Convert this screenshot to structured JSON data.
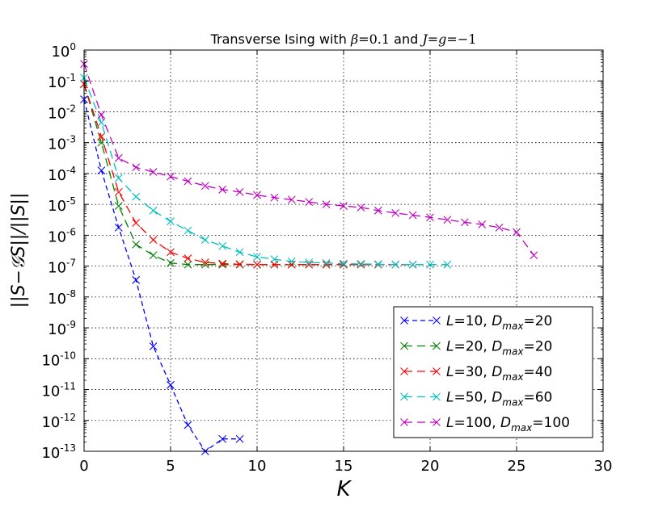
{
  "chart_data": {
    "type": "line",
    "title_parts": [
      "Transverse Ising with ",
      "β",
      "=0.1",
      " and ",
      "J",
      "=",
      "g",
      "=−1"
    ],
    "xlabel": "K",
    "ylabel": "||S−𝒢S||/||S||",
    "xlim": [
      0,
      30
    ],
    "ylim_log10": [
      -13,
      0
    ],
    "xticks": [
      0,
      5,
      10,
      15,
      20,
      25,
      30
    ],
    "yticks": [
      {
        "base": "10",
        "exp": "0"
      },
      {
        "base": "10",
        "exp": "-1"
      },
      {
        "base": "10",
        "exp": "-2"
      },
      {
        "base": "10",
        "exp": "-3"
      },
      {
        "base": "10",
        "exp": "-4"
      },
      {
        "base": "10",
        "exp": "-5"
      },
      {
        "base": "10",
        "exp": "-6"
      },
      {
        "base": "10",
        "exp": "-7"
      },
      {
        "base": "10",
        "exp": "-8"
      },
      {
        "base": "10",
        "exp": "-9"
      },
      {
        "base": "10",
        "exp": "-10"
      },
      {
        "base": "10",
        "exp": "-11"
      },
      {
        "base": "10",
        "exp": "-12"
      },
      {
        "base": "10",
        "exp": "-13"
      }
    ],
    "grid": true,
    "legend_position": "lower-right",
    "series": [
      {
        "L": "10",
        "Dmax": "20",
        "color": "#0000ff",
        "x": [
          0,
          1,
          2,
          3,
          4,
          5,
          6,
          7,
          8,
          9
        ],
        "y_log10": [
          -1.6,
          -3.9,
          -5.75,
          -7.45,
          -9.6,
          -10.85,
          -12.15,
          -13.0,
          -12.6,
          -12.6
        ]
      },
      {
        "L": "20",
        "Dmax": "20",
        "color": "#008000",
        "x": [
          0,
          1,
          2,
          3,
          4,
          5,
          6,
          7,
          8,
          9,
          10,
          11,
          12,
          13,
          14,
          15,
          16,
          17
        ],
        "y_log10": [
          -1.1,
          -3.0,
          -5.05,
          -6.3,
          -6.65,
          -6.9,
          -6.95,
          -6.95,
          -6.95,
          -6.95,
          -6.95,
          -6.95,
          -6.95,
          -6.95,
          -6.95,
          -6.95,
          -6.95,
          -6.95
        ]
      },
      {
        "L": "30",
        "Dmax": "40",
        "color": "#ff0000",
        "x": [
          0,
          1,
          2,
          3,
          4,
          5,
          6,
          7,
          8,
          9,
          10,
          11,
          12,
          13,
          14,
          15,
          16,
          17,
          18,
          19
        ],
        "y_log10": [
          -1.1,
          -2.8,
          -4.6,
          -5.6,
          -6.15,
          -6.55,
          -6.75,
          -6.88,
          -6.92,
          -6.94,
          -6.95,
          -6.95,
          -6.95,
          -6.95,
          -6.95,
          -6.95,
          -6.95,
          -6.95,
          -6.95,
          -6.95
        ]
      },
      {
        "L": "50",
        "Dmax": "60",
        "color": "#00bfbf",
        "x": [
          0,
          1,
          2,
          3,
          4,
          5,
          6,
          7,
          8,
          9,
          10,
          11,
          12,
          13,
          14,
          15,
          16,
          17,
          18,
          19,
          20,
          21
        ],
        "y_log10": [
          -0.9,
          -2.35,
          -4.15,
          -4.75,
          -5.2,
          -5.55,
          -5.85,
          -6.15,
          -6.35,
          -6.55,
          -6.7,
          -6.78,
          -6.85,
          -6.88,
          -6.9,
          -6.92,
          -6.93,
          -6.94,
          -6.95,
          -6.95,
          -6.95,
          -6.95
        ]
      },
      {
        "L": "100",
        "Dmax": "100",
        "color": "#bf00bf",
        "x": [
          0,
          1,
          2,
          3,
          4,
          5,
          6,
          7,
          8,
          9,
          10,
          11,
          12,
          13,
          14,
          15,
          16,
          17,
          18,
          19,
          20,
          21,
          22,
          23,
          24,
          25,
          26
        ],
        "y_log10": [
          -0.45,
          -2.1,
          -3.5,
          -3.8,
          -3.95,
          -4.1,
          -4.25,
          -4.4,
          -4.52,
          -4.6,
          -4.7,
          -4.78,
          -4.85,
          -4.92,
          -5.0,
          -5.05,
          -5.1,
          -5.2,
          -5.28,
          -5.35,
          -5.42,
          -5.5,
          -5.58,
          -5.65,
          -5.75,
          -5.9,
          -6.65
        ]
      }
    ]
  }
}
